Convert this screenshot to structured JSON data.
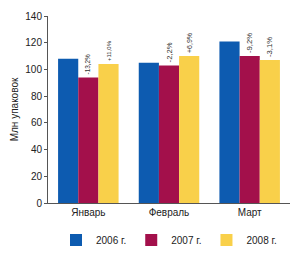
{
  "chart_data": {
    "type": "bar",
    "y_label": "Млн упаковок",
    "categories": [
      "Январь",
      "Февраль",
      "Март"
    ],
    "series": [
      {
        "name": "2006 г.",
        "color": "#0d5bb0",
        "values": [
          108,
          105,
          121
        ]
      },
      {
        "name": "2007 г.",
        "color": "#a3104b",
        "values": [
          94,
          103,
          110
        ]
      },
      {
        "name": "2008 г.",
        "color": "#f9d04a",
        "values": [
          104,
          110,
          107
        ]
      }
    ],
    "annotations": [
      {
        "category": "Январь",
        "series": "2007 г.",
        "text": "-13,2%"
      },
      {
        "category": "Январь",
        "series": "2008 г.",
        "text": "+11,0%"
      },
      {
        "category": "Февраль",
        "series": "2007 г.",
        "text": "-2,2%"
      },
      {
        "category": "Февраль",
        "series": "2008 г.",
        "text": "+6,9%"
      },
      {
        "category": "Март",
        "series": "2007 г.",
        "text": "-9,2%"
      },
      {
        "category": "Март",
        "series": "2008 г.",
        "text": "-3,1%"
      }
    ],
    "ylim": [
      0,
      140
    ],
    "yticks": [
      0,
      20,
      40,
      60,
      80,
      100,
      120,
      140
    ],
    "grid": false,
    "legend": "bottom"
  }
}
